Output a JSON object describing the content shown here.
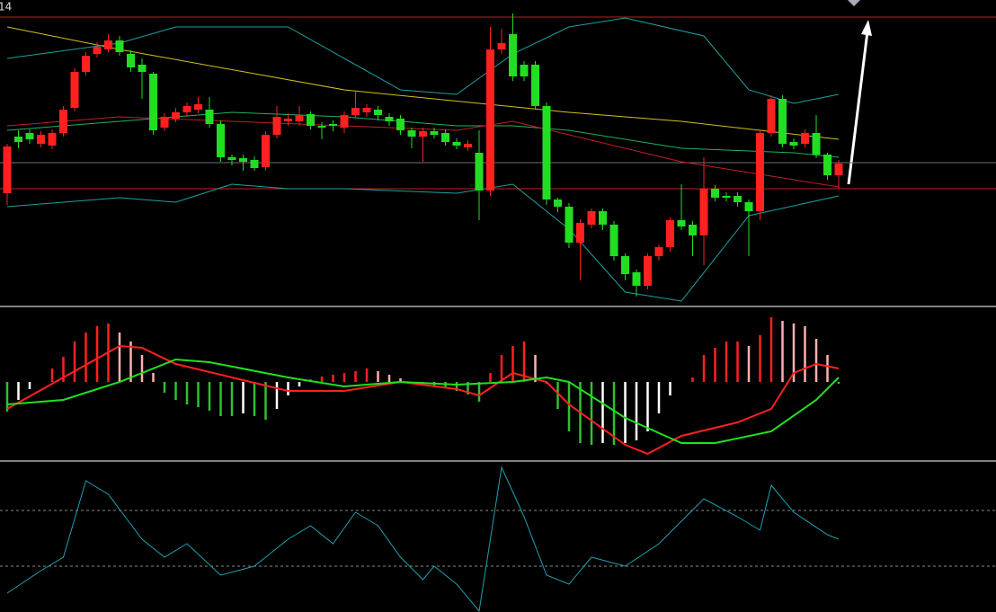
{
  "chart_data": [
    {
      "type": "candlestick",
      "title": "14",
      "xlim": [
        -0.64,
        88
      ],
      "ylim": [
        0,
        340
      ],
      "up_color": "#ff2020",
      "down_color": "#22dd22",
      "open": [
        125,
        188,
        192,
        180,
        178,
        192,
        220,
        260,
        280,
        285,
        295,
        280,
        268,
        258,
        198,
        208,
        215,
        218,
        218,
        202,
        165,
        164,
        162,
        154,
        190,
        205,
        205,
        213,
        200,
        202,
        198,
        212,
        215,
        218,
        210,
        208,
        195,
        188,
        194,
        192,
        182,
        176,
        170,
        128,
        285,
        302,
        268,
        268,
        222,
        118,
        110,
        70,
        90,
        105,
        90,
        55,
        37,
        22,
        55,
        65,
        95,
        90,
        78,
        130,
        122,
        122,
        115,
        105,
        192,
        230,
        182,
        180,
        192,
        168,
        145
      ],
      "close": [
        177,
        182,
        185,
        190,
        192,
        218,
        260,
        278,
        288,
        295,
        282,
        265,
        260,
        195,
        210,
        215,
        222,
        224,
        202,
        165,
        162,
        160,
        153,
        190,
        210,
        208,
        212,
        200,
        198,
        200,
        212,
        220,
        220,
        212,
        205,
        195,
        188,
        194,
        190,
        182,
        178,
        180,
        128,
        285,
        292,
        255,
        255,
        222,
        118,
        110,
        70,
        92,
        105,
        90,
        55,
        35,
        22,
        55,
        65,
        95,
        88,
        78,
        130,
        120,
        120,
        115,
        105,
        192,
        230,
        180,
        178,
        192,
        168,
        145,
        158
      ],
      "high": [
        180,
        195,
        196,
        194,
        196,
        222,
        264,
        282,
        293,
        302,
        300,
        284,
        275,
        260,
        214,
        220,
        226,
        232,
        232,
        206,
        168,
        168,
        166,
        194,
        222,
        214,
        222,
        216,
        204,
        206,
        216,
        238,
        224,
        222,
        214,
        212,
        198,
        198,
        198,
        196,
        186,
        184,
        195,
        310,
        308,
        325,
        272,
        272,
        226,
        120,
        114,
        96,
        108,
        108,
        94,
        58,
        40,
        58,
        68,
        98,
        135,
        94,
        165,
        134,
        126,
        126,
        118,
        196,
        234,
        234,
        186,
        196,
        212,
        170,
        162
      ],
      "low": [
        112,
        175,
        180,
        176,
        174,
        188,
        216,
        256,
        276,
        282,
        278,
        260,
        230,
        190,
        194,
        204,
        210,
        214,
        198,
        160,
        156,
        150,
        150,
        150,
        186,
        200,
        200,
        196,
        185,
        194,
        192,
        208,
        210,
        206,
        200,
        190,
        175,
        160,
        186,
        178,
        174,
        172,
        95,
        122,
        280,
        250,
        250,
        218,
        112,
        104,
        64,
        28,
        86,
        84,
        50,
        28,
        10,
        18,
        50,
        60,
        84,
        55,
        45,
        116,
        116,
        110,
        55,
        95,
        188,
        176,
        174,
        176,
        164,
        140,
        130
      ],
      "hlines": [
        {
          "value": 321,
          "color": "#c02020"
        },
        {
          "value": 159,
          "color": "#707070"
        },
        {
          "value": 130,
          "color": "#c02020"
        }
      ],
      "series": [
        {
          "color": "#d4c020",
          "x": [
            0,
            10,
            30,
            50,
            60,
            74
          ],
          "values": [
            310,
            285,
            240,
            215,
            205,
            185
          ]
        },
        {
          "color": "#20b060",
          "x": [
            0,
            10,
            20,
            30,
            40,
            45,
            50,
            60,
            70,
            74
          ],
          "values": [
            195,
            205,
            215,
            210,
            200,
            200,
            195,
            175,
            170,
            165
          ]
        },
        {
          "color": "#c02020",
          "x": [
            0,
            10,
            20,
            30,
            40,
            45,
            50,
            60,
            70,
            74
          ],
          "values": [
            200,
            210,
            205,
            200,
            195,
            205,
            190,
            160,
            140,
            132
          ]
        },
        {
          "color": "#20a0a0",
          "x": [
            0,
            10,
            15,
            25,
            35,
            40,
            45,
            50,
            55,
            62,
            66,
            70,
            74
          ],
          "values": [
            275,
            292,
            310,
            310,
            240,
            235,
            280,
            310,
            320,
            300,
            240,
            225,
            235
          ]
        },
        {
          "color": "#20a0a0",
          "x": [
            0,
            10,
            15,
            20,
            25,
            30,
            40,
            45,
            50,
            55,
            60,
            66,
            74
          ],
          "values": [
            110,
            120,
            115,
            135,
            130,
            130,
            125,
            135,
            85,
            15,
            5,
            100,
            122
          ]
        }
      ]
    },
    {
      "type": "bar",
      "xlim": [
        -0.64,
        88
      ],
      "ylim": [
        -87,
        83
      ],
      "colors": {
        "rise_up": "#ff2020",
        "fall_up": "#ffb0b0",
        "fall_down": "#30c030",
        "rise_down": "#ffffff"
      },
      "values": [
        -33,
        -20,
        -8,
        0,
        15,
        28,
        45,
        55,
        62,
        65,
        55,
        45,
        30,
        10,
        -12,
        -20,
        -25,
        -28,
        -32,
        -38,
        -38,
        -35,
        -38,
        -42,
        -30,
        -15,
        -5,
        3,
        6,
        8,
        10,
        12,
        15,
        12,
        8,
        4,
        0,
        -2,
        -5,
        -6,
        -10,
        -14,
        -22,
        10,
        30,
        40,
        45,
        30,
        -2,
        -30,
        -55,
        -68,
        -70,
        -68,
        -70,
        -68,
        -65,
        -55,
        -35,
        -15,
        0,
        5,
        30,
        38,
        45,
        45,
        40,
        52,
        72,
        68,
        65,
        62,
        48,
        30,
        -2
      ],
      "series": [
        {
          "color": "#ff2020",
          "x": [
            0,
            10,
            12,
            15,
            20,
            25,
            30,
            35,
            40,
            42,
            45,
            48,
            50,
            55,
            57,
            60,
            65,
            68,
            70,
            72,
            74
          ],
          "values": [
            -30,
            40,
            38,
            20,
            5,
            -10,
            -10,
            0,
            -8,
            -15,
            10,
            0,
            -25,
            -70,
            -80,
            -60,
            -45,
            -30,
            10,
            20,
            15
          ]
        },
        {
          "color": "#20e020",
          "x": [
            0,
            5,
            10,
            15,
            18,
            25,
            30,
            35,
            40,
            45,
            48,
            50,
            55,
            60,
            63,
            68,
            72,
            74
          ],
          "values": [
            -25,
            -20,
            0,
            25,
            22,
            5,
            -5,
            0,
            -3,
            0,
            5,
            0,
            -40,
            -68,
            -68,
            -55,
            -20,
            5
          ]
        }
      ]
    },
    {
      "type": "line",
      "xlim": [
        -0.64,
        88
      ],
      "ylim": [
        0,
        165
      ],
      "levels": [
        112,
        50
      ],
      "series": [
        {
          "color": "#20a0b0",
          "x": [
            0,
            3,
            5,
            7,
            9,
            12,
            14,
            16,
            19,
            22,
            25,
            27,
            29,
            31,
            33,
            35,
            37,
            38,
            40,
            42,
            44,
            46,
            48,
            50,
            52,
            55,
            58,
            60,
            62,
            65,
            67,
            68,
            70,
            73,
            74
          ],
          "values": [
            20,
            45,
            60,
            145,
            130,
            80,
            60,
            75,
            40,
            50,
            80,
            95,
            75,
            110,
            95,
            60,
            35,
            50,
            30,
            0,
            160,
            105,
            40,
            30,
            60,
            50,
            75,
            100,
            125,
            105,
            90,
            140,
            110,
            85,
            80
          ]
        }
      ]
    }
  ]
}
